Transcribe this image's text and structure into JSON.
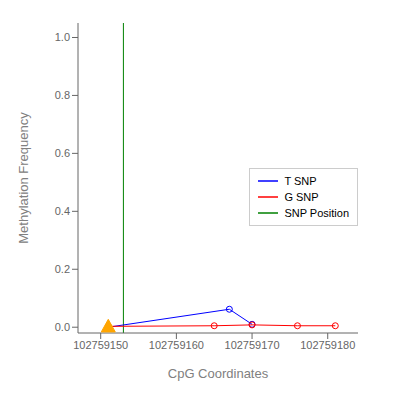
{
  "chart_data": {
    "type": "line",
    "xlabel": "CpG Coordinates",
    "ylabel": "Methylation Frequency",
    "series": [
      {
        "name": "T SNP",
        "color": "blue",
        "type": "line",
        "marker": "circle",
        "x": [
          102759151,
          102759167,
          102759170
        ],
        "values": [
          0.0,
          0.062,
          0.01
        ]
      },
      {
        "name": "G SNP",
        "color": "red",
        "type": "line",
        "marker": "circle",
        "x": [
          102759151,
          102759165,
          102759170,
          102759176,
          102759181
        ],
        "values": [
          0.003,
          0.005,
          0.008,
          0.005,
          0.005
        ]
      },
      {
        "name": "SNP Position",
        "color": "green",
        "type": "vline",
        "x": [
          102759153
        ]
      },
      {
        "color": "orange",
        "type": "scatter",
        "marker": "triangle",
        "x": [
          102759151
        ],
        "values": [
          0.003
        ]
      }
    ],
    "xlim": [
      102759147,
      102759184
    ],
    "ylim": [
      -0.02,
      1.05
    ],
    "xticks": [
      102759150,
      102759160,
      102759170,
      102759180
    ],
    "yticks": [
      {
        "value": 0.0,
        "label": "0.0"
      },
      0.2,
      0.4,
      0.6,
      0.8,
      {
        "value": 1.0,
        "label": "1.0"
      }
    ],
    "legend": "right"
  }
}
